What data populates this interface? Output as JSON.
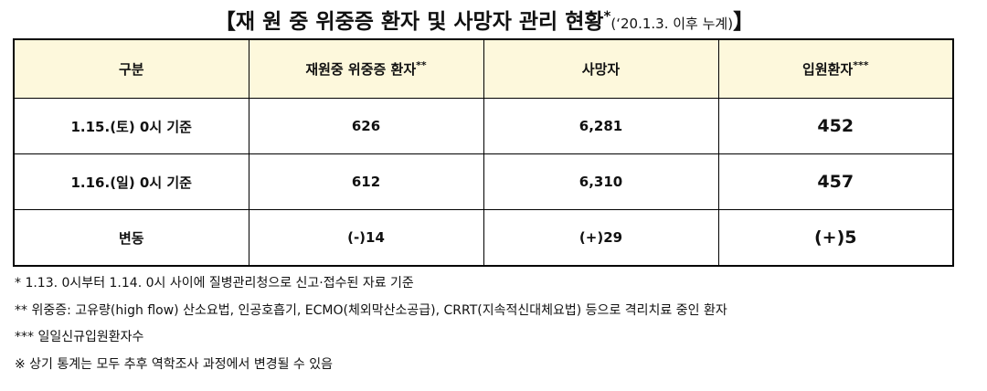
{
  "title": {
    "main": "【재 원 중  위중증 환자 및 사망자 관리 현황",
    "mark": "*",
    "note": "(‘20.1.3. 이후 누계)",
    "close": "】"
  },
  "table": {
    "headers": [
      {
        "text": "구분"
      },
      {
        "text": "재원중 위중증 환자",
        "mark": "**"
      },
      {
        "text": "사망자"
      },
      {
        "text": "입원환자",
        "mark": "***"
      }
    ],
    "rows": [
      [
        "1.15.(토) 0시 기준",
        "626",
        "6,281",
        "452"
      ],
      [
        "1.16.(일) 0시 기준",
        "612",
        "6,310",
        "457"
      ],
      [
        "변동",
        "(-)14",
        "(+)29",
        "(+)5"
      ]
    ]
  },
  "notes": [
    "* 1.13. 0시부터 1.14. 0시 사이에 질병관리청으로 신고·접수된 자료 기준",
    "** 위중증: 고유량(high flow) 산소요법, 인공호흡기, ECMO(체외막산소공급), CRRT(지속적신대체요법) 등으로 격리치료 중인 환자",
    "*** 일일신규입원환자수",
    "※ 상기 통계는 모두 추후 역학조사 과정에서 변경될 수 있음"
  ]
}
